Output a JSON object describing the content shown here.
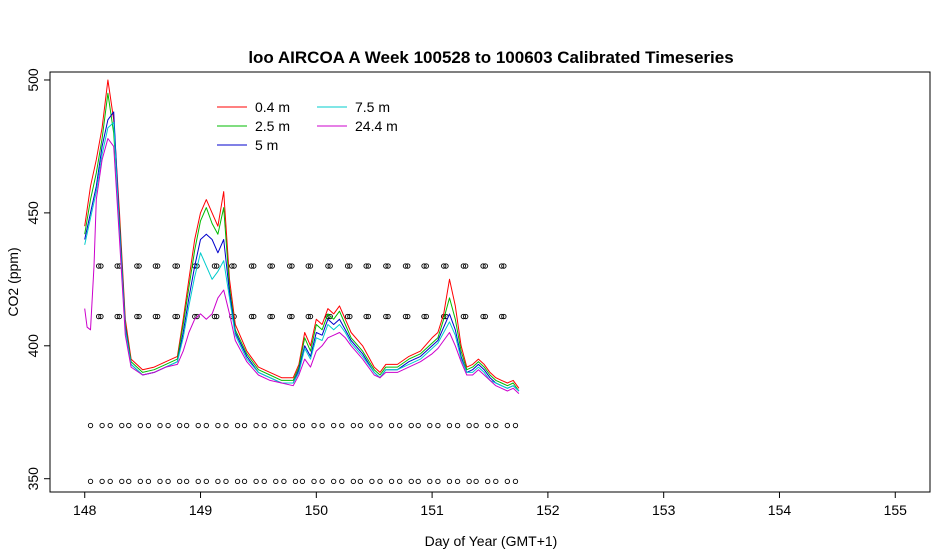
{
  "chart_data": {
    "type": "line",
    "title": "loo AIRCOA A  Week 100528 to 100603  Calibrated Timeseries",
    "xlabel": "Day of Year (GMT+1)",
    "ylabel": "CO2 (ppm)",
    "xlim": [
      147.7,
      155.3
    ],
    "ylim": [
      345,
      503
    ],
    "x_ticks": [
      148,
      149,
      150,
      151,
      152,
      153,
      154,
      155
    ],
    "y_ticks": [
      350,
      400,
      450,
      500
    ],
    "grid": false,
    "legend_position": "top-left",
    "series": [
      {
        "name": "0.4 m",
        "color": "#ff0000",
        "x": [
          148.0,
          148.05,
          148.1,
          148.15,
          148.2,
          148.25,
          148.3,
          148.35,
          148.4,
          148.5,
          148.6,
          148.7,
          148.8,
          148.85,
          148.9,
          148.95,
          149.0,
          149.05,
          149.1,
          149.15,
          149.2,
          149.25,
          149.3,
          149.4,
          149.5,
          149.6,
          149.7,
          149.8,
          149.85,
          149.9,
          149.95,
          150.0,
          150.05,
          150.1,
          150.15,
          150.2,
          150.25,
          150.3,
          150.4,
          150.5,
          150.55,
          150.6,
          150.7,
          150.8,
          150.9,
          151.0,
          151.05,
          151.1,
          151.15,
          151.2,
          151.25,
          151.3,
          151.35,
          151.4,
          151.45,
          151.5,
          151.55,
          151.6,
          151.65,
          151.7,
          151.75
        ],
        "values": [
          445,
          460,
          470,
          482,
          500,
          485,
          450,
          410,
          395,
          391,
          392,
          394,
          396,
          410,
          425,
          440,
          450,
          455,
          450,
          445,
          458,
          425,
          408,
          398,
          392,
          390,
          388,
          388,
          393,
          405,
          400,
          410,
          408,
          414,
          412,
          415,
          410,
          405,
          400,
          392,
          390,
          393,
          393,
          396,
          398,
          403,
          405,
          412,
          425,
          415,
          400,
          392,
          393,
          395,
          393,
          390,
          388,
          387,
          386,
          387,
          384
        ]
      },
      {
        "name": "2.5 m",
        "color": "#00bb00",
        "x": [
          148.0,
          148.05,
          148.1,
          148.15,
          148.2,
          148.25,
          148.3,
          148.35,
          148.4,
          148.5,
          148.6,
          148.7,
          148.8,
          148.85,
          148.9,
          148.95,
          149.0,
          149.05,
          149.1,
          149.15,
          149.2,
          149.25,
          149.3,
          149.4,
          149.5,
          149.6,
          149.7,
          149.8,
          149.85,
          149.9,
          149.95,
          150.0,
          150.05,
          150.1,
          150.15,
          150.2,
          150.25,
          150.3,
          150.4,
          150.5,
          150.55,
          150.6,
          150.7,
          150.8,
          150.9,
          151.0,
          151.05,
          151.1,
          151.15,
          151.2,
          151.25,
          151.3,
          151.35,
          151.4,
          151.45,
          151.5,
          151.55,
          151.6,
          151.65,
          151.7,
          151.75
        ],
        "values": [
          442,
          455,
          465,
          478,
          495,
          480,
          447,
          408,
          394,
          390,
          391,
          393,
          395,
          408,
          422,
          436,
          447,
          452,
          446,
          442,
          452,
          422,
          406,
          397,
          391,
          389,
          387,
          387,
          392,
          403,
          398,
          408,
          406,
          412,
          410,
          413,
          408,
          403,
          398,
          391,
          389,
          392,
          392,
          395,
          397,
          401,
          403,
          410,
          418,
          410,
          398,
          391,
          392,
          394,
          392,
          389,
          387,
          386,
          385,
          386,
          383
        ]
      },
      {
        "name": "5 m",
        "color": "#0000cc",
        "x": [
          148.0,
          148.05,
          148.1,
          148.15,
          148.2,
          148.25,
          148.3,
          148.35,
          148.4,
          148.5,
          148.6,
          148.7,
          148.8,
          148.85,
          148.9,
          148.95,
          149.0,
          149.05,
          149.1,
          149.15,
          149.2,
          149.25,
          149.3,
          149.4,
          149.5,
          149.6,
          149.7,
          149.8,
          149.85,
          149.9,
          149.95,
          150.0,
          150.05,
          150.1,
          150.15,
          150.2,
          150.25,
          150.3,
          150.4,
          150.5,
          150.55,
          150.6,
          150.7,
          150.8,
          150.9,
          151.0,
          151.05,
          151.1,
          151.15,
          151.2,
          151.25,
          151.3,
          151.35,
          151.4,
          151.45,
          151.5,
          151.55,
          151.6,
          151.65,
          151.7,
          151.75
        ],
        "values": [
          440,
          450,
          460,
          475,
          485,
          488,
          445,
          407,
          393,
          389,
          390,
          392,
          394,
          405,
          418,
          430,
          440,
          442,
          440,
          435,
          440,
          420,
          405,
          396,
          390,
          388,
          386,
          386,
          391,
          400,
          396,
          405,
          404,
          410,
          408,
          410,
          406,
          402,
          397,
          390,
          388,
          391,
          391,
          394,
          396,
          400,
          402,
          407,
          412,
          406,
          396,
          390,
          391,
          393,
          391,
          388,
          386,
          385,
          384,
          385,
          383
        ]
      },
      {
        "name": "7.5 m",
        "color": "#00cccc",
        "x": [
          148.0,
          148.05,
          148.1,
          148.15,
          148.2,
          148.25,
          148.3,
          148.35,
          148.4,
          148.5,
          148.6,
          148.7,
          148.8,
          148.85,
          148.9,
          148.95,
          149.0,
          149.05,
          149.1,
          149.15,
          149.2,
          149.25,
          149.3,
          149.4,
          149.5,
          149.6,
          149.7,
          149.8,
          149.85,
          149.9,
          149.95,
          150.0,
          150.05,
          150.1,
          150.15,
          150.2,
          150.25,
          150.3,
          150.4,
          150.5,
          150.55,
          150.6,
          150.7,
          150.8,
          150.9,
          151.0,
          151.05,
          151.1,
          151.15,
          151.2,
          151.25,
          151.3,
          151.35,
          151.4,
          151.45,
          151.5,
          151.55,
          151.6,
          151.65,
          151.7,
          151.75
        ],
        "values": [
          438,
          448,
          458,
          472,
          482,
          484,
          443,
          406,
          393,
          389,
          390,
          392,
          394,
          403,
          415,
          426,
          435,
          430,
          425,
          428,
          432,
          418,
          404,
          395,
          390,
          388,
          386,
          386,
          390,
          399,
          395,
          403,
          402,
          408,
          406,
          408,
          405,
          401,
          396,
          390,
          388,
          391,
          391,
          393,
          395,
          399,
          401,
          405,
          409,
          404,
          395,
          390,
          390,
          392,
          390,
          387,
          386,
          385,
          384,
          385,
          383
        ]
      },
      {
        "name": "24.4 m",
        "color": "#cc00cc",
        "x": [
          148.0,
          148.02,
          148.05,
          148.08,
          148.1,
          148.15,
          148.2,
          148.25,
          148.3,
          148.35,
          148.4,
          148.5,
          148.6,
          148.7,
          148.8,
          148.85,
          148.9,
          148.95,
          149.0,
          149.05,
          149.1,
          149.15,
          149.2,
          149.25,
          149.3,
          149.4,
          149.5,
          149.6,
          149.7,
          149.8,
          149.85,
          149.9,
          149.95,
          150.0,
          150.05,
          150.1,
          150.15,
          150.2,
          150.25,
          150.3,
          150.4,
          150.5,
          150.55,
          150.6,
          150.7,
          150.8,
          150.9,
          151.0,
          151.05,
          151.1,
          151.15,
          151.2,
          151.25,
          151.3,
          151.35,
          151.4,
          151.45,
          151.5,
          151.55,
          151.6,
          151.65,
          151.7,
          151.75
        ],
        "values": [
          414,
          407,
          406,
          430,
          455,
          470,
          478,
          475,
          440,
          404,
          392,
          389,
          390,
          392,
          393,
          398,
          405,
          410,
          412,
          410,
          412,
          418,
          421,
          412,
          402,
          394,
          389,
          387,
          386,
          385,
          389,
          395,
          392,
          398,
          400,
          403,
          404,
          405,
          403,
          400,
          395,
          389,
          388,
          390,
          390,
          392,
          394,
          397,
          399,
          402,
          405,
          400,
          394,
          389,
          389,
          391,
          389,
          387,
          385,
          384,
          383,
          384,
          382
        ]
      }
    ],
    "marker_rows": [
      {
        "y": 430,
        "x": [
          148.12,
          148.14,
          148.28,
          148.3,
          148.45,
          148.47,
          148.61,
          148.63,
          148.78,
          148.8,
          148.95,
          148.97,
          149.12,
          149.14,
          149.27,
          149.29,
          149.44,
          149.46,
          149.6,
          149.62,
          149.77,
          149.79,
          149.93,
          149.95,
          150.1,
          150.12,
          150.27,
          150.29,
          150.43,
          150.45,
          150.6,
          150.62,
          150.77,
          150.79,
          150.93,
          150.95,
          151.1,
          151.12,
          151.27,
          151.29,
          151.44,
          151.46,
          151.6,
          151.62
        ]
      },
      {
        "y": 411,
        "x": [
          148.12,
          148.14,
          148.28,
          148.3,
          148.45,
          148.47,
          148.61,
          148.63,
          148.78,
          148.8,
          148.95,
          148.97,
          149.12,
          149.14,
          149.27,
          149.29,
          149.44,
          149.46,
          149.6,
          149.62,
          149.77,
          149.79,
          149.93,
          149.95,
          150.1,
          150.12,
          150.27,
          150.29,
          150.43,
          150.45,
          150.6,
          150.62,
          150.77,
          150.79,
          150.93,
          150.95,
          151.1,
          151.12,
          151.27,
          151.29,
          151.44,
          151.46,
          151.6,
          151.62
        ]
      },
      {
        "y": 370,
        "x": [
          148.05,
          148.15,
          148.22,
          148.32,
          148.38,
          148.48,
          148.55,
          148.65,
          148.72,
          148.82,
          148.88,
          148.98,
          149.05,
          149.15,
          149.22,
          149.32,
          149.38,
          149.48,
          149.55,
          149.65,
          149.72,
          149.82,
          149.88,
          149.98,
          150.05,
          150.15,
          150.22,
          150.32,
          150.38,
          150.48,
          150.55,
          150.65,
          150.72,
          150.82,
          150.88,
          150.98,
          151.05,
          151.15,
          151.22,
          151.32,
          151.38,
          151.48,
          151.55,
          151.65,
          151.72
        ]
      },
      {
        "y": 349,
        "x": [
          148.05,
          148.15,
          148.22,
          148.32,
          148.38,
          148.48,
          148.55,
          148.65,
          148.72,
          148.82,
          148.88,
          148.98,
          149.05,
          149.15,
          149.22,
          149.32,
          149.38,
          149.48,
          149.55,
          149.65,
          149.72,
          149.82,
          149.88,
          149.98,
          150.05,
          150.15,
          150.22,
          150.32,
          150.38,
          150.48,
          150.55,
          150.65,
          150.72,
          150.82,
          150.88,
          150.98,
          151.05,
          151.15,
          151.22,
          151.32,
          151.38,
          151.48,
          151.55,
          151.65,
          151.72
        ]
      }
    ]
  }
}
